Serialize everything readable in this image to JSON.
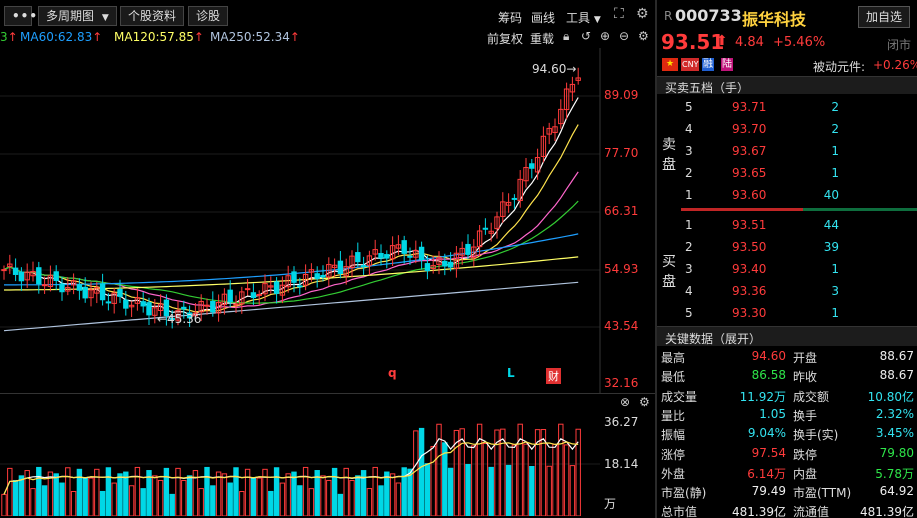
{
  "toolbar": {
    "more_icon": "more-horizontal-icon",
    "period_label": "多周期图",
    "stock_info_label": "个股资料",
    "diagnose_label": "诊股",
    "chip_label": "筹码",
    "draw_label": "画线",
    "tools_label": "工具"
  },
  "ma_row": {
    "first_partial": "3",
    "ma60": "MA60:62.83",
    "ma120": "MA120:57.85",
    "ma250": "MA250:52.34",
    "fq_label": "前复权",
    "overlay_label": "重载"
  },
  "price_axis": [
    "89.09",
    "77.70",
    "66.31",
    "54.93",
    "43.54",
    "32.16"
  ],
  "annotations": {
    "high_label": "94.60→",
    "low_label": "←45.36",
    "q_marker": "q",
    "l_marker": "L",
    "cai_marker": "财"
  },
  "volume_axis": [
    "36.27",
    "18.14",
    "万"
  ],
  "colors": {
    "up": "#ff3b3b",
    "down": "#00d7e6",
    "ma_white": "#ffffff",
    "ma_yellow": "#ffe34d",
    "ma_pink": "#ff66cc",
    "ma_green": "#33cc33",
    "ma60": "#1e9fff",
    "ma120": "#ffff66",
    "ma250": "#b0c4de"
  },
  "stock": {
    "r_tag": "R",
    "code": "000733",
    "name": "振华科技",
    "add_label": "加自选",
    "price": "93.51",
    "change": "4.84",
    "change_pct": "+5.46%",
    "status": "闭市",
    "tags": [
      "中",
      "CNY",
      "融",
      "陆"
    ],
    "etf_label": "被动元件:",
    "etf_change": "+0.26%"
  },
  "orderbook": {
    "title": "买卖五档（手）",
    "sell_label": [
      "卖",
      "盘"
    ],
    "buy_label": [
      "买",
      "盘"
    ],
    "sell": [
      {
        "level": "5",
        "price": "93.71",
        "vol": "2"
      },
      {
        "level": "4",
        "price": "93.70",
        "vol": "2"
      },
      {
        "level": "3",
        "price": "93.67",
        "vol": "1"
      },
      {
        "level": "2",
        "price": "93.65",
        "vol": "1"
      },
      {
        "level": "1",
        "price": "93.60",
        "vol": "40"
      }
    ],
    "buy": [
      {
        "level": "1",
        "price": "93.51",
        "vol": "44"
      },
      {
        "level": "2",
        "price": "93.50",
        "vol": "39"
      },
      {
        "level": "3",
        "price": "93.40",
        "vol": "1"
      },
      {
        "level": "4",
        "price": "93.36",
        "vol": "3"
      },
      {
        "level": "5",
        "price": "93.30",
        "vol": "1"
      }
    ]
  },
  "keydata": {
    "title": "关键数据（展开）",
    "rows": [
      {
        "l1": "最高",
        "v1": "94.60",
        "c1": "up",
        "l2": "开盘",
        "v2": "88.67",
        "c2": "w"
      },
      {
        "l1": "最低",
        "v1": "86.58",
        "c1": "dn",
        "l2": "昨收",
        "v2": "88.67",
        "c2": "w"
      },
      {
        "l1": "成交量",
        "v1": "11.92万",
        "c1": "cy",
        "l2": "成交额",
        "v2": "10.80亿",
        "c2": "cy"
      },
      {
        "l1": "量比",
        "v1": "1.05",
        "c1": "cy",
        "l2": "换手",
        "v2": "2.32%",
        "c2": "cy"
      },
      {
        "l1": "振幅",
        "v1": "9.04%",
        "c1": "cy",
        "l2": "换手(实)",
        "v2": "3.45%",
        "c2": "cy"
      },
      {
        "l1": "涨停",
        "v1": "97.54",
        "c1": "up",
        "l2": "跌停",
        "v2": "79.80",
        "c2": "dn"
      },
      {
        "l1": "外盘",
        "v1": "6.14万",
        "c1": "up",
        "l2": "内盘",
        "v2": "5.78万",
        "c2": "dn"
      },
      {
        "l1": "市盈(静)",
        "v1": "79.49",
        "c1": "w",
        "l2": "市盈(TTM)",
        "v2": "64.92",
        "c2": "w"
      },
      {
        "l1": "总市值",
        "v1": "481.39亿",
        "c1": "w",
        "l2": "流通值",
        "v2": "481.39亿",
        "c2": "w"
      }
    ]
  }
}
